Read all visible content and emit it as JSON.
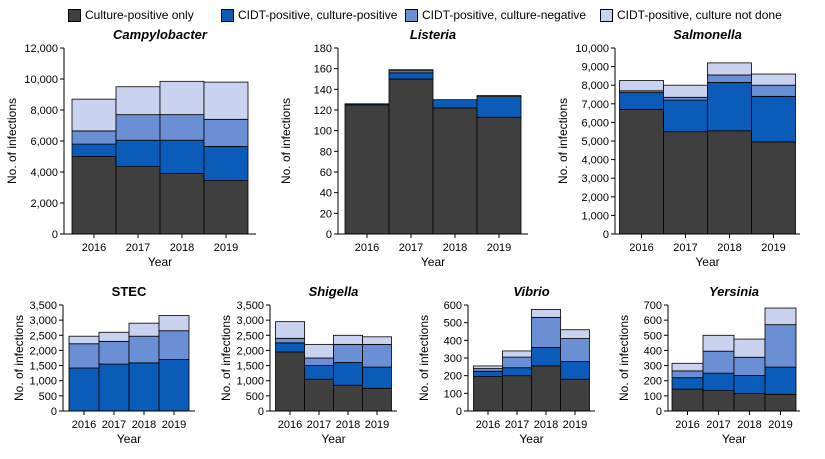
{
  "legend": [
    {
      "name": "Culture-positive only",
      "color": "#3f3f3f"
    },
    {
      "name": "CIDT-positive, culture-positive",
      "color": "#0b5cb8"
    },
    {
      "name": "CIDT-positive, culture-negative",
      "color": "#6b8fd4"
    },
    {
      "name": "CIDT-positive, culture not done",
      "color": "#c9d3ef"
    }
  ],
  "chart_data": [
    {
      "type": "bar",
      "stacked": true,
      "title": "Campylobacter",
      "title_italic": true,
      "xlabel": "Year",
      "ylabel": "No. of infections",
      "categories": [
        "2016",
        "2017",
        "2018",
        "2019"
      ],
      "ylim": [
        0,
        12000
      ],
      "yticks": [
        "0",
        "2,000",
        "4,000",
        "6,000",
        "8,000",
        "10,000",
        "12,000"
      ],
      "series": [
        {
          "name": "Culture-positive only",
          "values": [
            5000,
            4350,
            3900,
            3450
          ]
        },
        {
          "name": "CIDT-positive, culture-positive",
          "values": [
            800,
            1700,
            2150,
            2200
          ]
        },
        {
          "name": "CIDT-positive, culture-negative",
          "values": [
            850,
            1650,
            1650,
            1750
          ]
        },
        {
          "name": "CIDT-positive, culture not done",
          "values": [
            2050,
            1800,
            2150,
            2400
          ]
        }
      ]
    },
    {
      "type": "bar",
      "stacked": true,
      "title": "Listeria",
      "title_italic": true,
      "xlabel": "Year",
      "ylabel": "No. of infections",
      "categories": [
        "2016",
        "2017",
        "2018",
        "2019"
      ],
      "ylim": [
        0,
        180
      ],
      "yticks": [
        "0",
        "20",
        "40",
        "60",
        "80",
        "100",
        "120",
        "140",
        "160",
        "180"
      ],
      "series": [
        {
          "name": "Culture-positive only",
          "values": [
            125,
            150,
            122,
            113
          ]
        },
        {
          "name": "CIDT-positive, culture-positive",
          "values": [
            1,
            6,
            8,
            20
          ]
        },
        {
          "name": "CIDT-positive, culture-negative",
          "values": [
            0,
            2,
            0,
            0
          ]
        },
        {
          "name": "CIDT-positive, culture not done",
          "values": [
            0,
            1,
            0,
            1
          ]
        }
      ]
    },
    {
      "type": "bar",
      "stacked": true,
      "title": "Salmonella",
      "title_italic": true,
      "xlabel": "Year",
      "ylabel": "No. of infections",
      "categories": [
        "2016",
        "2017",
        "2018",
        "2019"
      ],
      "ylim": [
        0,
        10000
      ],
      "yticks": [
        "0",
        "1,000",
        "2,000",
        "3,000",
        "4,000",
        "5,000",
        "6,000",
        "7,000",
        "8,000",
        "9,000",
        "10,000"
      ],
      "series": [
        {
          "name": "Culture-positive only",
          "values": [
            6700,
            5500,
            5550,
            4950
          ]
        },
        {
          "name": "CIDT-positive, culture-positive",
          "values": [
            900,
            1700,
            2600,
            2450
          ]
        },
        {
          "name": "CIDT-positive, culture-negative",
          "values": [
            100,
            150,
            400,
            600
          ]
        },
        {
          "name": "CIDT-positive, culture not done",
          "values": [
            550,
            650,
            650,
            600
          ]
        }
      ]
    },
    {
      "type": "bar",
      "stacked": true,
      "title": "STEC",
      "title_italic": false,
      "xlabel": "Year",
      "ylabel": "No. of infections",
      "categories": [
        "2016",
        "2017",
        "2018",
        "2019"
      ],
      "ylim": [
        0,
        3500
      ],
      "yticks": [
        "0",
        "500",
        "1,000",
        "1,500",
        "2,000",
        "2,500",
        "3,000",
        "3,500"
      ],
      "series": [
        {
          "name": "Culture-positive only",
          "values": [
            0,
            0,
            0,
            0
          ]
        },
        {
          "name": "CIDT-positive, culture-positive",
          "values": [
            1420,
            1550,
            1590,
            1700
          ]
        },
        {
          "name": "CIDT-positive, culture-negative",
          "values": [
            800,
            750,
            880,
            950
          ]
        },
        {
          "name": "CIDT-positive, culture not done",
          "values": [
            250,
            300,
            430,
            500
          ]
        }
      ]
    },
    {
      "type": "bar",
      "stacked": true,
      "title": "Shigella",
      "title_italic": true,
      "xlabel": "Year",
      "ylabel": "No. of infections",
      "categories": [
        "2016",
        "2017",
        "2018",
        "2019"
      ],
      "ylim": [
        0,
        3500
      ],
      "yticks": [
        "0",
        "500",
        "1,000",
        "1,500",
        "2,000",
        "2,500",
        "3,000",
        "3,500"
      ],
      "series": [
        {
          "name": "Culture-positive only",
          "values": [
            1950,
            1050,
            850,
            750
          ]
        },
        {
          "name": "CIDT-positive, culture-positive",
          "values": [
            300,
            450,
            750,
            700
          ]
        },
        {
          "name": "CIDT-positive, culture-negative",
          "values": [
            150,
            250,
            600,
            750
          ]
        },
        {
          "name": "CIDT-positive, culture not done",
          "values": [
            550,
            450,
            300,
            250
          ]
        }
      ]
    },
    {
      "type": "bar",
      "stacked": true,
      "title": "Vibrio",
      "title_italic": true,
      "xlabel": "Year",
      "ylabel": "No. of infections",
      "categories": [
        "2016",
        "2017",
        "2018",
        "2019"
      ],
      "ylim": [
        0,
        600
      ],
      "yticks": [
        "0",
        "100",
        "200",
        "300",
        "400",
        "500",
        "600"
      ],
      "series": [
        {
          "name": "Culture-positive only",
          "values": [
            195,
            200,
            255,
            180
          ]
        },
        {
          "name": "CIDT-positive, culture-positive",
          "values": [
            30,
            45,
            105,
            100
          ]
        },
        {
          "name": "CIDT-positive, culture-negative",
          "values": [
            15,
            60,
            170,
            130
          ]
        },
        {
          "name": "CIDT-positive, culture not done",
          "values": [
            15,
            35,
            45,
            50
          ]
        }
      ]
    },
    {
      "type": "bar",
      "stacked": true,
      "title": "Yersinia",
      "title_italic": true,
      "xlabel": "Year",
      "ylabel": "No. of infections",
      "categories": [
        "2016",
        "2017",
        "2018",
        "2019"
      ],
      "ylim": [
        0,
        700
      ],
      "yticks": [
        "0",
        "100",
        "200",
        "300",
        "400",
        "500",
        "600",
        "700"
      ],
      "series": [
        {
          "name": "Culture-positive only",
          "values": [
            145,
            135,
            115,
            110
          ]
        },
        {
          "name": "CIDT-positive, culture-positive",
          "values": [
            75,
            115,
            120,
            180
          ]
        },
        {
          "name": "CIDT-positive, culture-negative",
          "values": [
            45,
            145,
            120,
            280
          ]
        },
        {
          "name": "CIDT-positive, culture not done",
          "values": [
            50,
            105,
            120,
            110
          ]
        }
      ]
    }
  ]
}
